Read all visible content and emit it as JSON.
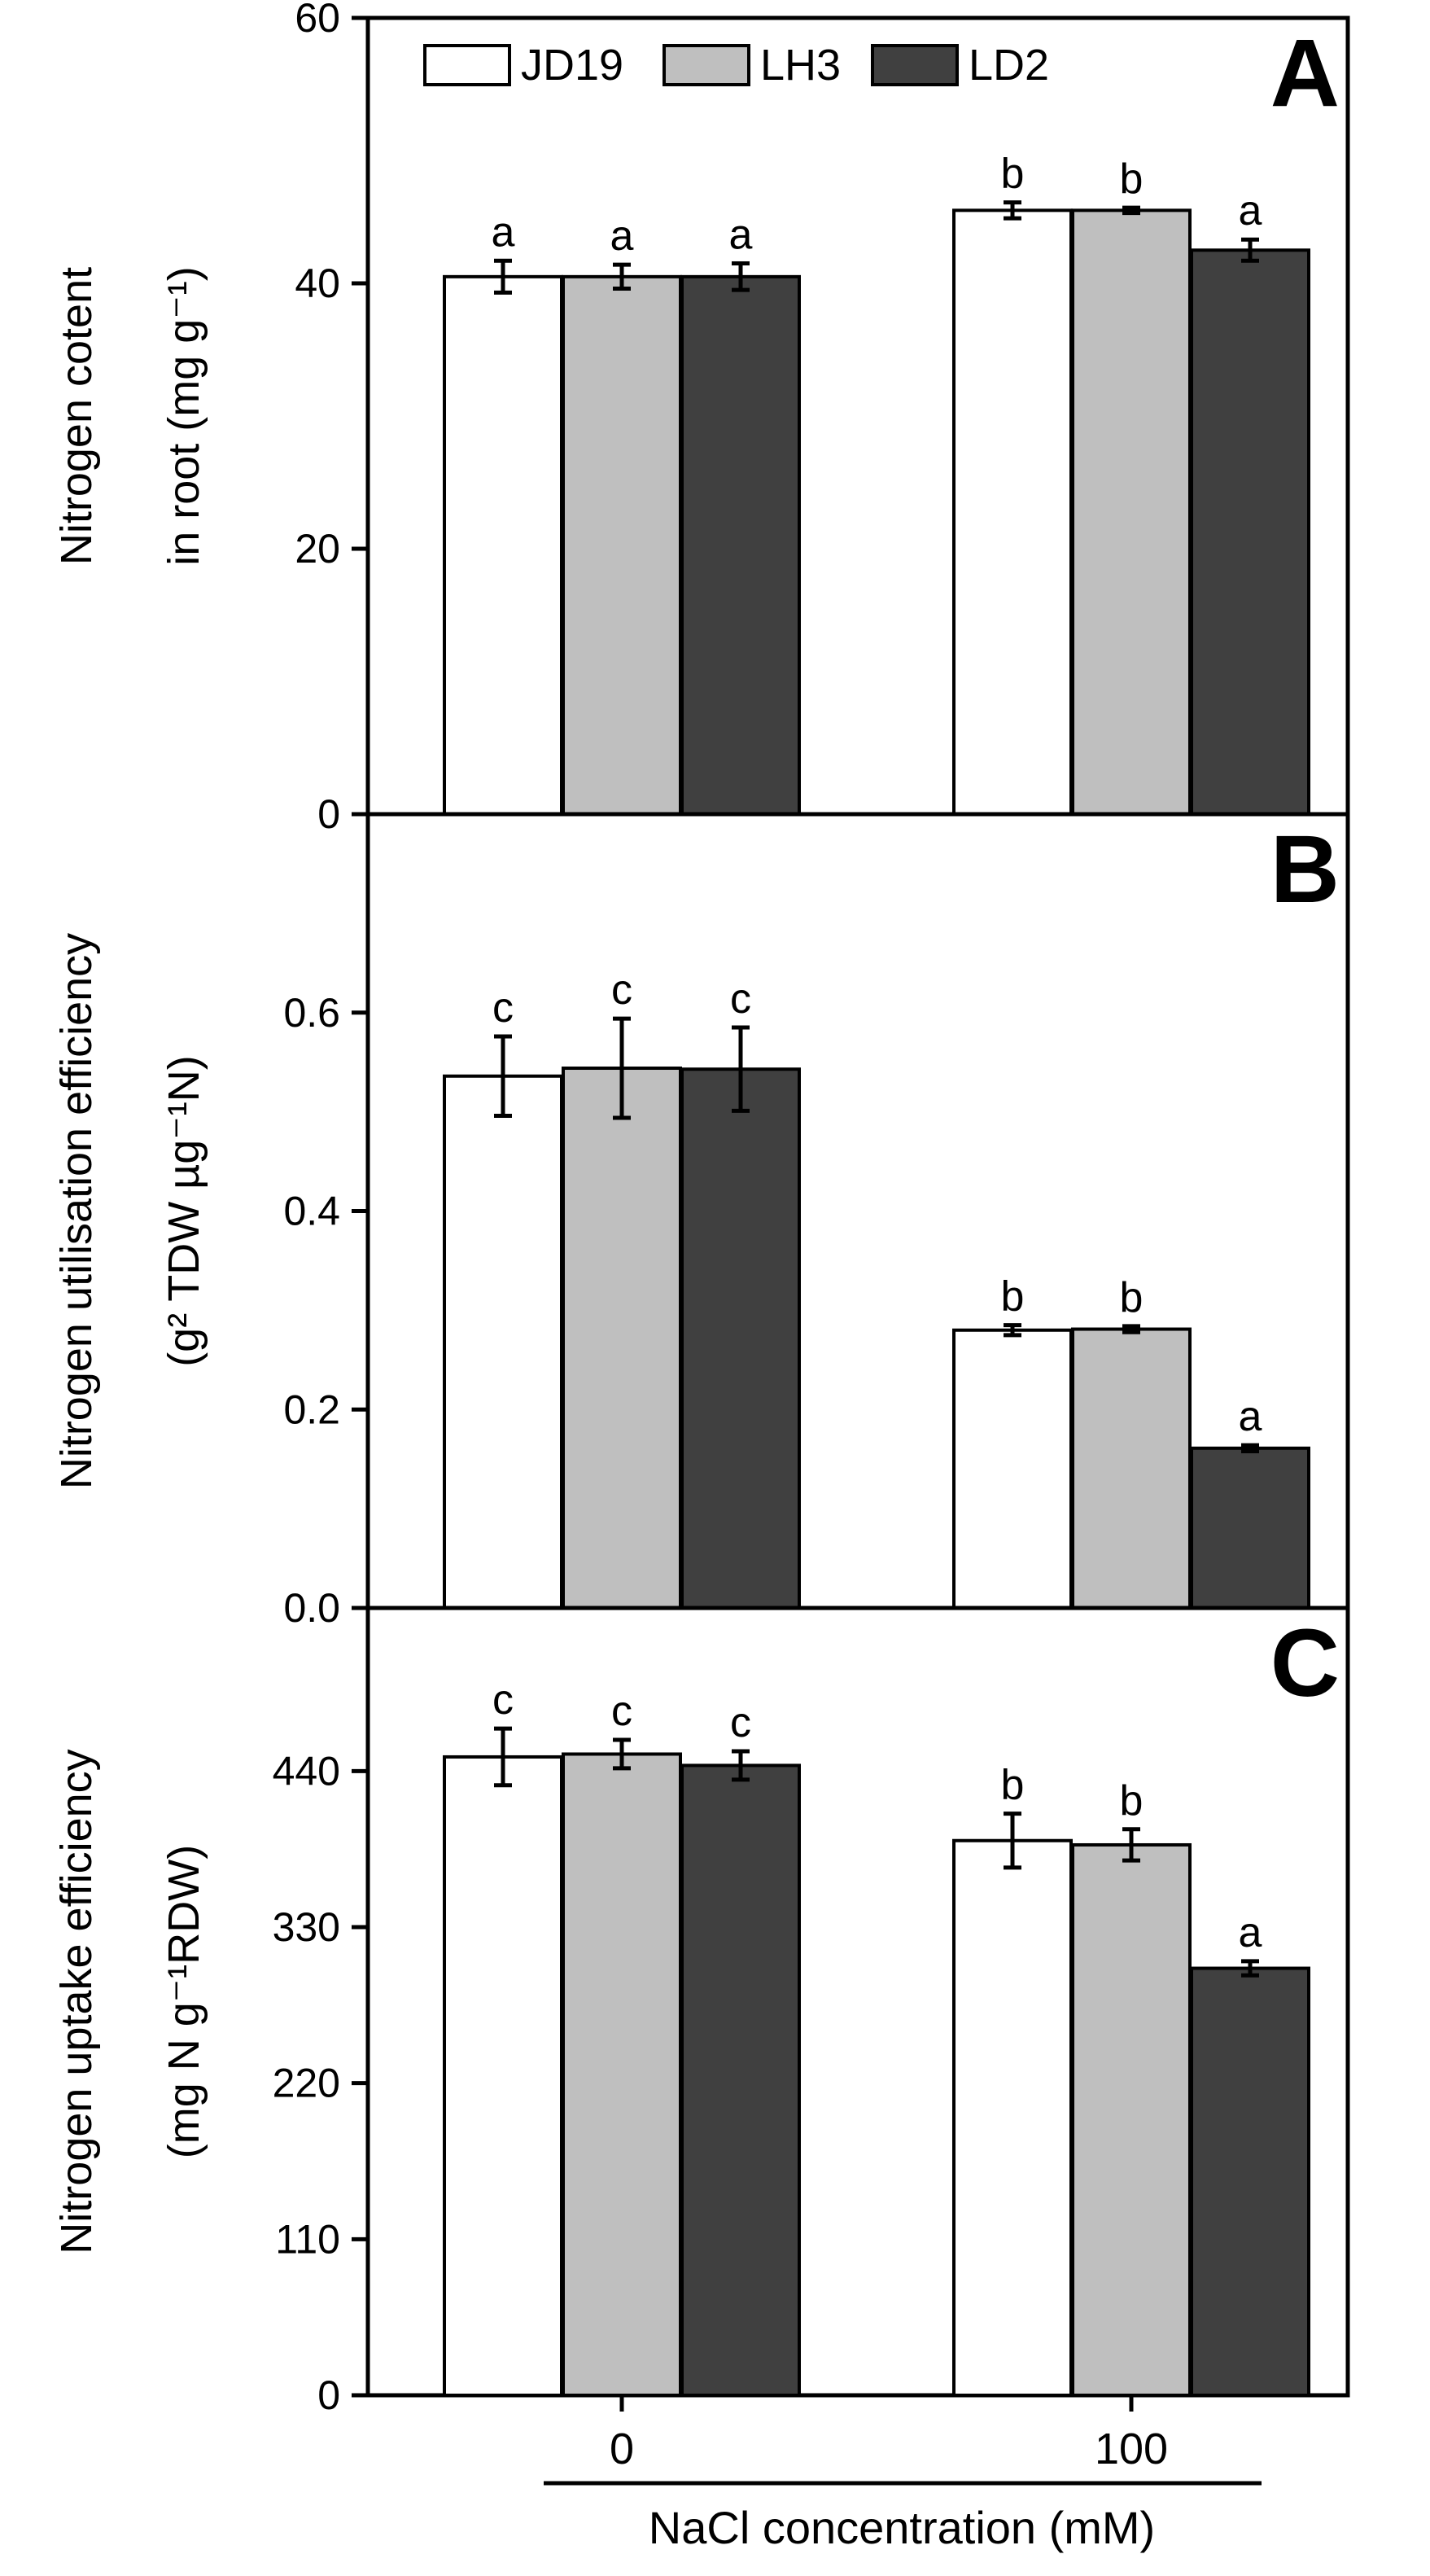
{
  "colors": {
    "JD19": "#ffffff",
    "LH3": "#bfbfbf",
    "LD2": "#404040",
    "axis": "#000000"
  },
  "x_axis": {
    "label": "NaCl concentration (mM)",
    "categories": [
      "0",
      "100"
    ]
  },
  "legend": {
    "placement": "top-left of panel A",
    "entries": [
      "JD19",
      "LH3",
      "LD2"
    ]
  },
  "chart_data": [
    {
      "type": "bar",
      "panel_label": "A",
      "ylabel_line1": "Nitrogen cotent",
      "ylabel_line2": "in root (mg g⁻¹)",
      "categories": [
        "0",
        "100"
      ],
      "ylim": [
        0,
        60
      ],
      "yticks": [
        "0",
        "20",
        "40",
        "60"
      ],
      "series": [
        {
          "name": "JD19",
          "values": [
            40.5,
            45.5
          ],
          "errors": [
            1.2,
            0.6
          ],
          "letters": [
            "a",
            "b"
          ]
        },
        {
          "name": "LH3",
          "values": [
            40.5,
            45.5
          ],
          "errors": [
            0.9,
            0.2
          ],
          "letters": [
            "a",
            "b"
          ]
        },
        {
          "name": "LD2",
          "values": [
            40.5,
            42.5
          ],
          "errors": [
            1.0,
            0.8
          ],
          "letters": [
            "a",
            "a"
          ]
        }
      ]
    },
    {
      "type": "bar",
      "panel_label": "B",
      "ylabel_line1": "Nitrogen utilisation efficiency",
      "ylabel_line2": "(g² TDW µg⁻¹N)",
      "categories": [
        "0",
        "100"
      ],
      "ylim": [
        0,
        0.8
      ],
      "yticks": [
        "0.0",
        "0.2",
        "0.4",
        "0.6"
      ],
      "series": [
        {
          "name": "JD19",
          "values": [
            0.536,
            0.28
          ],
          "errors": [
            0.04,
            0.005
          ],
          "letters": [
            "c",
            "b"
          ]
        },
        {
          "name": "LH3",
          "values": [
            0.544,
            0.281
          ],
          "errors": [
            0.05,
            0.003
          ],
          "letters": [
            "c",
            "b"
          ]
        },
        {
          "name": "LD2",
          "values": [
            0.543,
            0.161
          ],
          "errors": [
            0.042,
            0.003
          ],
          "letters": [
            "c",
            "a"
          ]
        }
      ]
    },
    {
      "type": "bar",
      "panel_label": "C",
      "ylabel_line1": "Nitrogen uptake efficiency",
      "ylabel_line2": "(mg N g⁻¹RDW)",
      "categories": [
        "0",
        "100"
      ],
      "ylim": [
        0,
        555
      ],
      "yticks": [
        "0",
        "110",
        "220",
        "330",
        "440"
      ],
      "series": [
        {
          "name": "JD19",
          "values": [
            450,
            391
          ],
          "errors": [
            20,
            19
          ],
          "letters": [
            "c",
            "b"
          ]
        },
        {
          "name": "LH3",
          "values": [
            452,
            388
          ],
          "errors": [
            10,
            11
          ],
          "letters": [
            "c",
            "b"
          ]
        },
        {
          "name": "LD2",
          "values": [
            444,
            301
          ],
          "errors": [
            10,
            5
          ],
          "letters": [
            "c",
            "a"
          ]
        }
      ]
    }
  ]
}
